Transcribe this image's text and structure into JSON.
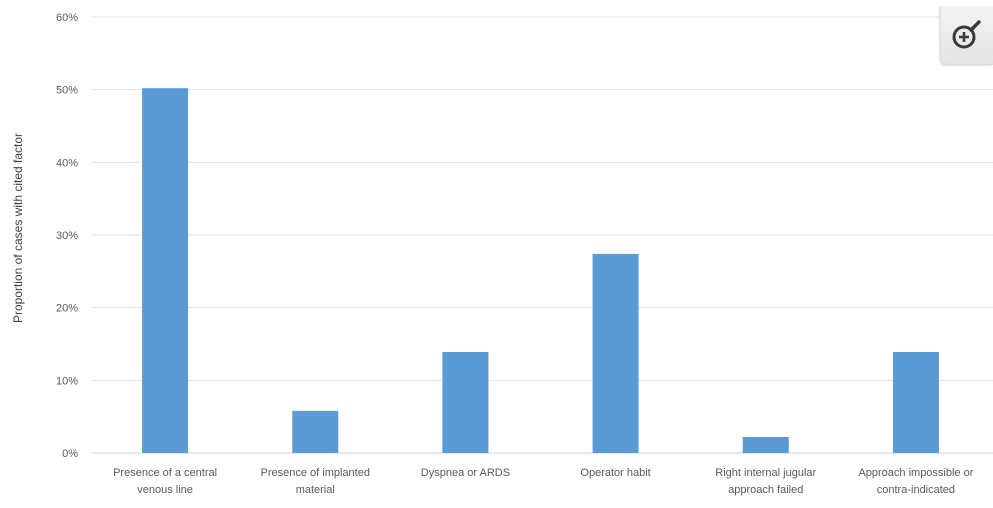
{
  "chart_data": {
    "type": "bar",
    "title": "",
    "xlabel": "",
    "ylabel": "Proportion of cases with cited factor",
    "ylim": [
      0,
      60
    ],
    "y_unit": "%",
    "yticks": [
      "0%",
      "10%",
      "20%",
      "30%",
      "40%",
      "50%",
      "60%"
    ],
    "grid": true,
    "legend": "none",
    "bar_color": "#5b9bd5",
    "categories": [
      [
        "Presence of a central",
        "venous line"
      ],
      [
        "Presence of implanted",
        "material"
      ],
      [
        "Dyspnea or ARDS"
      ],
      [
        "Operator habit"
      ],
      [
        "Right internal jugular",
        "approach failed"
      ],
      [
        "Approach impossible or",
        "contra-indicated"
      ]
    ],
    "values": [
      50.2,
      5.8,
      13.9,
      27.4,
      2.2,
      13.9
    ]
  },
  "toolbar": {
    "zoom_icon": "zoom-in-icon"
  }
}
